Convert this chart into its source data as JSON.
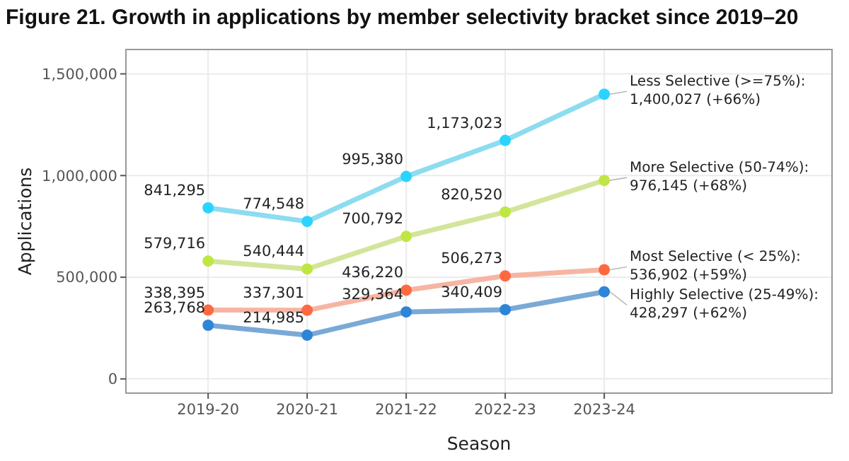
{
  "chart_data": {
    "type": "line",
    "title": "Figure 21. Growth in applications by member selectivity bracket since 2019–20",
    "xlabel": "Season",
    "ylabel": "Applications",
    "categories": [
      "2019-20",
      "2020-21",
      "2021-22",
      "2022-23",
      "2023-24"
    ],
    "ylim": [
      -70000,
      1620000
    ],
    "yticks": [
      0,
      {
        "value": 500000,
        "label": "500,000"
      },
      {
        "value": 1000000,
        "label": "1,000,000"
      },
      {
        "value": 1500000,
        "label": "1,500,000"
      }
    ],
    "grid": true,
    "marker": "circle",
    "line_style": "solid",
    "series": [
      {
        "name": "Less Selective (>=75%):",
        "color": "#8ddcf0",
        "values": [
          841295,
          774548,
          995380,
          1173023,
          1400027
        ],
        "value_labels": [
          "841,295",
          "774,548",
          "995,380",
          "1,173,023",
          "1,400,027 (+66%)"
        ]
      },
      {
        "name": "More Selective (50-74%):",
        "color": "#d3e59a",
        "values": [
          579716,
          540444,
          700792,
          820520,
          976145
        ],
        "value_labels": [
          "579,716",
          "540,444",
          "700,792",
          "820,520",
          "976,145 (+68%)"
        ]
      },
      {
        "name": "Most Selective (< 25%):",
        "color": "#f6b5a3",
        "values": [
          338395,
          337301,
          436220,
          506273,
          536902
        ],
        "value_labels": [
          "338,395",
          "337,301",
          "436,220",
          "506,273",
          "536,902 (+59%)"
        ]
      },
      {
        "name": "Highly Selective (25-49%):",
        "color": "#7aa9d6",
        "values": [
          263768,
          214985,
          329364,
          340409,
          428297
        ],
        "value_labels": [
          "263,768",
          "214,985",
          "329,364",
          "340,409",
          "428,297 (+62%)"
        ]
      }
    ]
  }
}
